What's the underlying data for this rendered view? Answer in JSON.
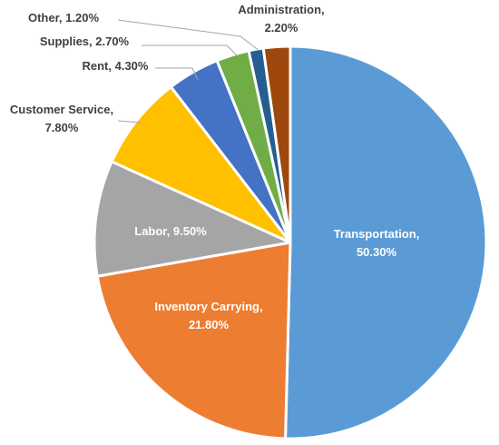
{
  "chart_data": {
    "type": "pie",
    "title": "",
    "start_angle_deg": 0,
    "direction": "clockwise",
    "slices": [
      {
        "label": "Transportation",
        "value": 50.3,
        "display": "50.30%",
        "color": "#5B9BD5"
      },
      {
        "label": "Inventory Carrying",
        "value": 21.8,
        "display": "21.80%",
        "color": "#ED7D31"
      },
      {
        "label": "Labor",
        "value": 9.5,
        "display": "9.50%",
        "color": "#A5A5A5"
      },
      {
        "label": "Customer Service",
        "value": 7.8,
        "display": "7.80%",
        "color": "#FFC000"
      },
      {
        "label": "Rent",
        "value": 4.3,
        "display": "4.30%",
        "color": "#4472C4"
      },
      {
        "label": "Supplies",
        "value": 2.7,
        "display": "2.70%",
        "color": "#70AD47"
      },
      {
        "label": "Other",
        "value": 1.2,
        "display": "1.20%",
        "color": "#255E91"
      },
      {
        "label": "Administration",
        "value": 2.2,
        "display": "2.20%",
        "color": "#9E480E"
      }
    ],
    "label_color_inside": "#FFFFFF",
    "label_color_outside": "#404040",
    "leader_line_color": "#A6A6A6",
    "slice_border_color": "#FFFFFF"
  }
}
